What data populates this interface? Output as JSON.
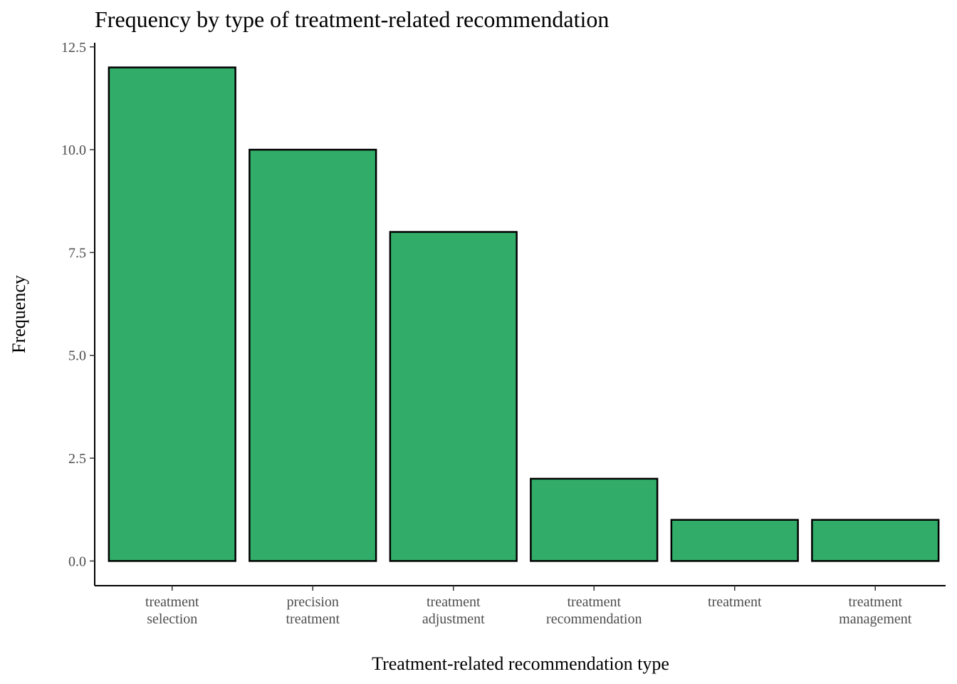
{
  "chart_data": {
    "type": "bar",
    "title": "Frequency by type of treatment-related recommendation",
    "xlabel": "Treatment-related recommendation type",
    "ylabel": "Frequency",
    "categories": [
      [
        "treatment",
        "selection"
      ],
      [
        "precision",
        "treatment"
      ],
      [
        "treatment",
        "adjustment"
      ],
      [
        "treatment",
        "recommendation"
      ],
      [
        "treatment"
      ],
      [
        "treatment",
        "management"
      ]
    ],
    "values": [
      12,
      10,
      8,
      2,
      1,
      1
    ],
    "yticks": [
      "0.0",
      "2.5",
      "5.0",
      "7.5",
      "10.0",
      "12.5"
    ],
    "ylim": [
      -0.6,
      12.6
    ],
    "grid": false,
    "legend": "none",
    "colors": {
      "bar_fill": "#31ad69",
      "bar_stroke": "#000000"
    }
  }
}
